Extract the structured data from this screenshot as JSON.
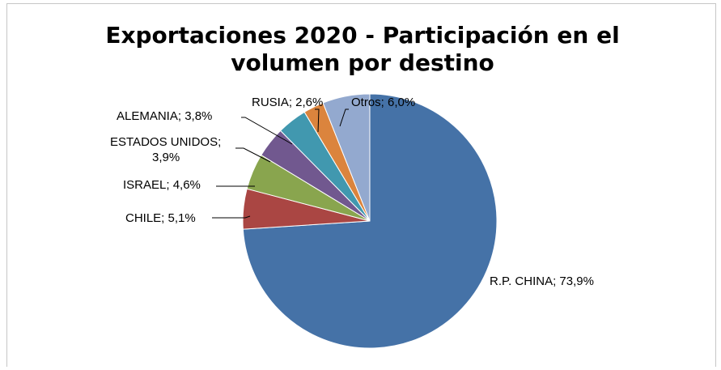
{
  "chart_data": {
    "type": "pie",
    "title": "Exportaciones 2020 - Participación en el volumen por destino",
    "title_lines": [
      "Exportaciones 2020 - Participación en el",
      "volumen por destino"
    ],
    "start_angle_deg": 0,
    "direction": "clockwise",
    "slices": [
      {
        "name": "R.P. CHINA",
        "value": 73.9,
        "label": "R.P. CHINA; 73,9%",
        "color": "#4572a7"
      },
      {
        "name": "CHILE",
        "value": 5.1,
        "label": "CHILE; 5,1%",
        "color": "#aa4643"
      },
      {
        "name": "ISRAEL",
        "value": 4.6,
        "label": "ISRAEL; 4,6%",
        "color": "#89a54e"
      },
      {
        "name": "ESTADOS UNIDOS",
        "value": 3.9,
        "label": "ESTADOS UNIDOS;|3,9%",
        "color": "#71588f"
      },
      {
        "name": "ALEMANIA",
        "value": 3.8,
        "label": "ALEMANIA; 3,8%",
        "color": "#4198af"
      },
      {
        "name": "RUSIA",
        "value": 2.6,
        "label": "RUSIA; 2,6%",
        "color": "#db843d"
      },
      {
        "name": "Otros",
        "value": 6.0,
        "label": "Otros; 6,0%",
        "color": "#93a9cf"
      }
    ],
    "legend": "none"
  }
}
